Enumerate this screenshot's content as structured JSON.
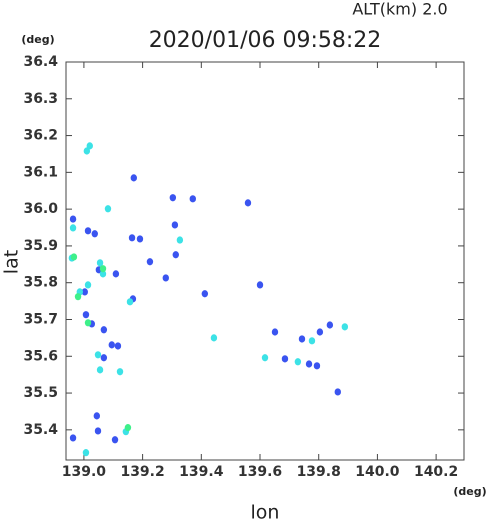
{
  "chart_data": {
    "type": "scatter",
    "title": "2020/01/06 09:58:22",
    "subtitle": "ALT(km)  2.0",
    "y_unit": "(deg)",
    "x_unit": "(deg)",
    "x_label": "lon",
    "y_label": "lat",
    "xlim": [
      138.939,
      140.295
    ],
    "ylim": [
      35.318,
      36.4
    ],
    "xticks": [
      {
        "value": 139,
        "label": "139.0"
      },
      139.2,
      139.4,
      139.6,
      139.8,
      {
        "value": 140,
        "label": "140.0"
      },
      140.2
    ],
    "yticks": [
      35.4,
      35.5,
      35.6,
      35.7,
      35.8,
      35.9,
      {
        "value": 36,
        "label": "36.0"
      },
      36.1,
      36.2,
      36.3,
      36.4
    ],
    "series": [
      {
        "color": "#3a54f0",
        "x": [
          138.963,
          139.014,
          139.037,
          139.003,
          139.051,
          139.007,
          139.027,
          139.068,
          139.095,
          139.068,
          139.116,
          139.17,
          139.164,
          139.303,
          139.371,
          139.225,
          139.279,
          139.412,
          139.6,
          139.651,
          139.559,
          139.685,
          139.838,
          139.804,
          139.767,
          139.865,
          139.044,
          139.048,
          139.106,
          138.963,
          139.109,
          139.167,
          139.191,
          139.31,
          139.313,
          139.743,
          139.794
        ],
        "values": [
          35.973,
          35.941,
          35.933,
          35.775,
          35.835,
          35.713,
          35.688,
          35.596,
          35.631,
          35.672,
          35.628,
          36.085,
          35.922,
          36.031,
          36.028,
          35.857,
          35.813,
          35.77,
          35.794,
          35.666,
          36.017,
          35.593,
          35.685,
          35.666,
          35.579,
          35.503,
          35.438,
          35.397,
          35.373,
          35.378,
          35.824,
          35.756,
          35.919,
          35.957,
          35.876,
          35.647,
          35.574
        ]
      },
      {
        "color": "#3ce2e6",
        "x": [
          139.01,
          139.02,
          138.963,
          139.082,
          138.959,
          139.055,
          139.014,
          139.055,
          139.065,
          139.157,
          138.986,
          139.443,
          139.617,
          139.729,
          139.777,
          139.889,
          139.143,
          139.007,
          139.048,
          139.123,
          139.327
        ],
        "values": [
          36.158,
          36.172,
          35.949,
          36.001,
          35.867,
          35.854,
          35.794,
          35.563,
          35.824,
          35.748,
          35.775,
          35.65,
          35.596,
          35.585,
          35.642,
          35.68,
          35.395,
          35.338,
          35.604,
          35.558,
          35.916
        ]
      },
      {
        "color": "#3ef08a",
        "x": [
          138.98,
          139.065,
          139.15,
          138.966,
          139.014
        ],
        "values": [
          35.762,
          35.838,
          35.406,
          35.87,
          35.691
        ]
      }
    ]
  }
}
